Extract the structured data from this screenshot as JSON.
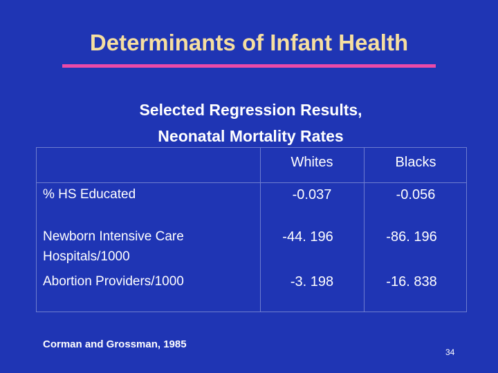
{
  "slide": {
    "title": "Determinants of Infant Health",
    "subtitle_line1": "Selected Regression Results,",
    "subtitle_line2": "Neonatal Mortality Rates",
    "footer": "Corman and Grossman, 1985",
    "page_number": "34"
  },
  "table": {
    "headers": [
      "Whites",
      "Blacks"
    ],
    "rows": [
      {
        "label": "% HS Educated",
        "label_line2": "",
        "whites": "-0.037",
        "blacks": "-0.056"
      },
      {
        "label": "Newborn Intensive Care",
        "label_line2": "Hospitals/1000",
        "whites": "-44. 196",
        "blacks": "-86. 196"
      },
      {
        "label": "Abortion Providers/1000",
        "label_line2": "",
        "whites": "-3. 198",
        "blacks": "-16. 838"
      }
    ]
  },
  "colors": {
    "background": "#1f35b4",
    "title": "#f6dfa0",
    "rule": "#ec4aa8",
    "text": "#ffffff"
  }
}
